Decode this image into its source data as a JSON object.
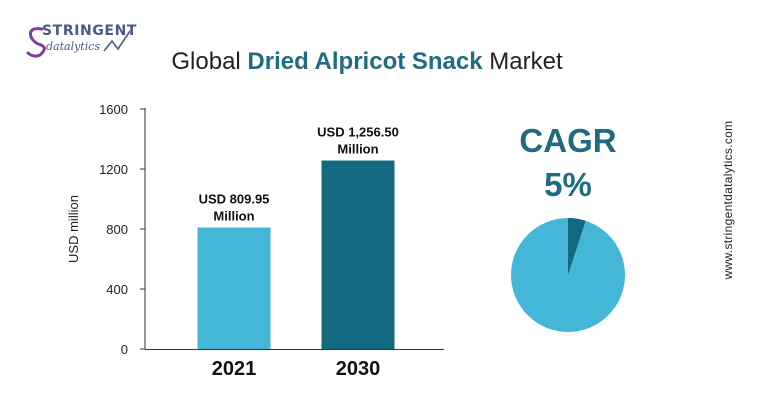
{
  "brand": {
    "line1": "STRINGENT",
    "line2": "datalytics",
    "colors": {
      "primary": "#4a5a82",
      "accent": "#7b3fa0"
    }
  },
  "title": {
    "prefix": "Global ",
    "highlight": "Dried Alpricot Snack",
    "suffix": " Market"
  },
  "side_text": "www.stringentdatalytics.com",
  "cagr": {
    "label": "CAGR",
    "value": "5%",
    "share": 0.05
  },
  "colors": {
    "bar_2021": "#44b7d8",
    "bar_2030": "#136a80",
    "pie_major": "#44b7d8",
    "pie_minor": "#136a80",
    "accent_text": "#1f6b80"
  },
  "chart_data": {
    "type": "bar",
    "categories": [
      "2021",
      "2030"
    ],
    "values": [
      809.95,
      1256.5
    ],
    "data_labels": [
      [
        "USD 809.95",
        "Million"
      ],
      [
        "USD 1,256.50",
        "Million"
      ]
    ],
    "ylabel": "USD million",
    "xlabel": "",
    "ylim": [
      0,
      1600
    ],
    "yticks": [
      0,
      400,
      800,
      1200,
      1600
    ],
    "grid": false
  }
}
